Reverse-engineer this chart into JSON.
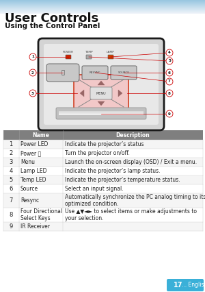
{
  "title": "User Controls",
  "subtitle": "Using the Control Panel",
  "bg_color": "#ffffff",
  "table_header_bg": "#7f7f7f",
  "table_header_fg": "#ffffff",
  "page_num": "17",
  "page_suffix": "... English",
  "table_rows": [
    [
      "1",
      "Power LED",
      "Indicate the projector’s status"
    ],
    [
      "2",
      "Power ⏻",
      "Turn the projector on/off."
    ],
    [
      "3",
      "Menu",
      "Launch the on-screen display (OSD) / Exit a menu."
    ],
    [
      "4",
      "Lamp LED",
      "Indicate the projector’s lamp status."
    ],
    [
      "5",
      "Temp LED",
      "Indicate the projector’s temperature status."
    ],
    [
      "6",
      "Source",
      "Select an input signal."
    ],
    [
      "7",
      "Resync",
      "Automatically synchronize the PC analog timing to its\noptimized condition."
    ],
    [
      "8",
      "Four Directional\nSelect Keys",
      "Use ▲▼◄► to select items or make adjustments to\nyour selection."
    ],
    [
      "9",
      "IR Receiver",
      ""
    ]
  ],
  "accent_color": "#3ab0d8",
  "red_color": "#cc0000",
  "panel_facecolor": "#d4d4d4",
  "panel_inner_color": "#e8e8e8",
  "dpad_facecolor": "#f2c8c8",
  "dpad_edgecolor": "#cc2200",
  "ir_bar_color": "#c0c0c0"
}
